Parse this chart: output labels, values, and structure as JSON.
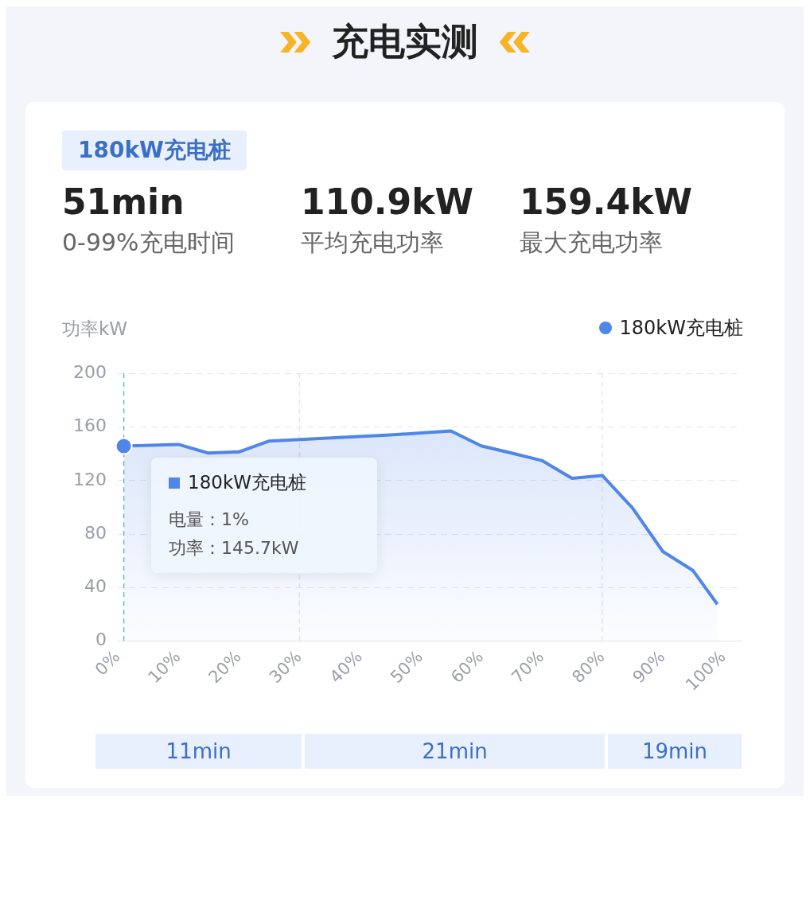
{
  "chart_data": {
    "type": "area",
    "title": "充电实测",
    "subtitle": "180kW充电桩",
    "ylabel": "功率kW",
    "annotations": [
      "51min",
      "0-99%充电时间",
      "110.9kW",
      "平均充电功率",
      "159.4kW",
      "最大充电功率",
      "180kW充电桩",
      "电量：1%",
      "功率：145.7kW",
      "11min",
      "21min",
      "19min"
    ],
    "x": [
      1,
      10,
      15,
      20,
      25,
      45,
      55,
      60,
      65,
      70,
      75,
      80,
      85,
      90,
      95,
      99
    ],
    "series": [
      {
        "name": "180kW充电桩",
        "color": "#4f86e8",
        "values": [
          145.7,
          147,
          140.5,
          141.4,
          149.5,
          154,
          157,
          145.9,
          140.5,
          135,
          121.7,
          123.8,
          99.5,
          67,
          52.7,
          27.6
        ]
      }
    ],
    "xlim": [
      0,
      103
    ],
    "xticks": [
      {
        "value": 0,
        "label": "0%"
      },
      {
        "value": 10,
        "label": "10%"
      },
      {
        "value": 20,
        "label": "20%"
      },
      {
        "value": 30,
        "label": "30%"
      },
      {
        "value": 40,
        "label": "40%"
      },
      {
        "value": 50,
        "label": "50%"
      },
      {
        "value": 60,
        "label": "60%"
      },
      {
        "value": 70,
        "label": "70%"
      },
      {
        "value": 80,
        "label": "80%"
      },
      {
        "value": 90,
        "label": "90%"
      },
      {
        "value": 100,
        "label": "100%"
      }
    ],
    "ylim": [
      0,
      200
    ],
    "yticks": [
      0,
      40,
      80,
      120,
      160,
      200
    ],
    "ref_lines": [
      {
        "axis": "x",
        "value": 1,
        "color": "#5cc3c3",
        "line_style": "dashed"
      },
      {
        "axis": "x",
        "value": 30,
        "color": "#e3e6ec",
        "line_style": "dashed"
      },
      {
        "axis": "x",
        "value": 80,
        "color": "#e3e6ec",
        "line_style": "dashed"
      }
    ],
    "grid": "y",
    "legend": "top right",
    "line_style": "solid"
  }
}
